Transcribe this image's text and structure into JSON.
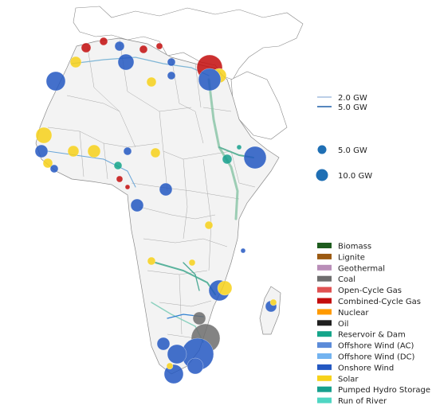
{
  "line_legend": [
    {
      "label": "2.0 GW",
      "color": "#4a7fbf"
    },
    {
      "label": "5.0 GW",
      "color": "#1f5fa8"
    }
  ],
  "size_legend": [
    {
      "label": "5.0 GW",
      "color": "#1f6fb4"
    },
    {
      "label": "10.0 GW",
      "color": "#1f6fb4"
    }
  ],
  "carriers": [
    {
      "label": "Biomass",
      "color": "#1e5c1e"
    },
    {
      "label": "Lignite",
      "color": "#9b5a12"
    },
    {
      "label": "Geothermal",
      "color": "#b98eb8"
    },
    {
      "label": "Coal",
      "color": "#6e6e6e"
    },
    {
      "label": "Open-Cycle Gas",
      "color": "#e05252"
    },
    {
      "label": "Combined-Cycle Gas",
      "color": "#c40d0d"
    },
    {
      "label": "Nuclear",
      "color": "#ff9a00"
    },
    {
      "label": "Oil",
      "color": "#1f1f1f"
    },
    {
      "label": "Reservoir & Dam",
      "color": "#15a58a"
    },
    {
      "label": "Offshore Wind (AC)",
      "color": "#5b8bd9"
    },
    {
      "label": "Offshore Wind (DC)",
      "color": "#73b3f0"
    },
    {
      "label": "Onshore Wind",
      "color": "#2458c2"
    },
    {
      "label": "Solar",
      "color": "#f7d21a"
    },
    {
      "label": "Pumped Hydro Storage",
      "color": "#17a08e"
    },
    {
      "label": "Run of River",
      "color": "#4fd6c3"
    }
  ]
}
